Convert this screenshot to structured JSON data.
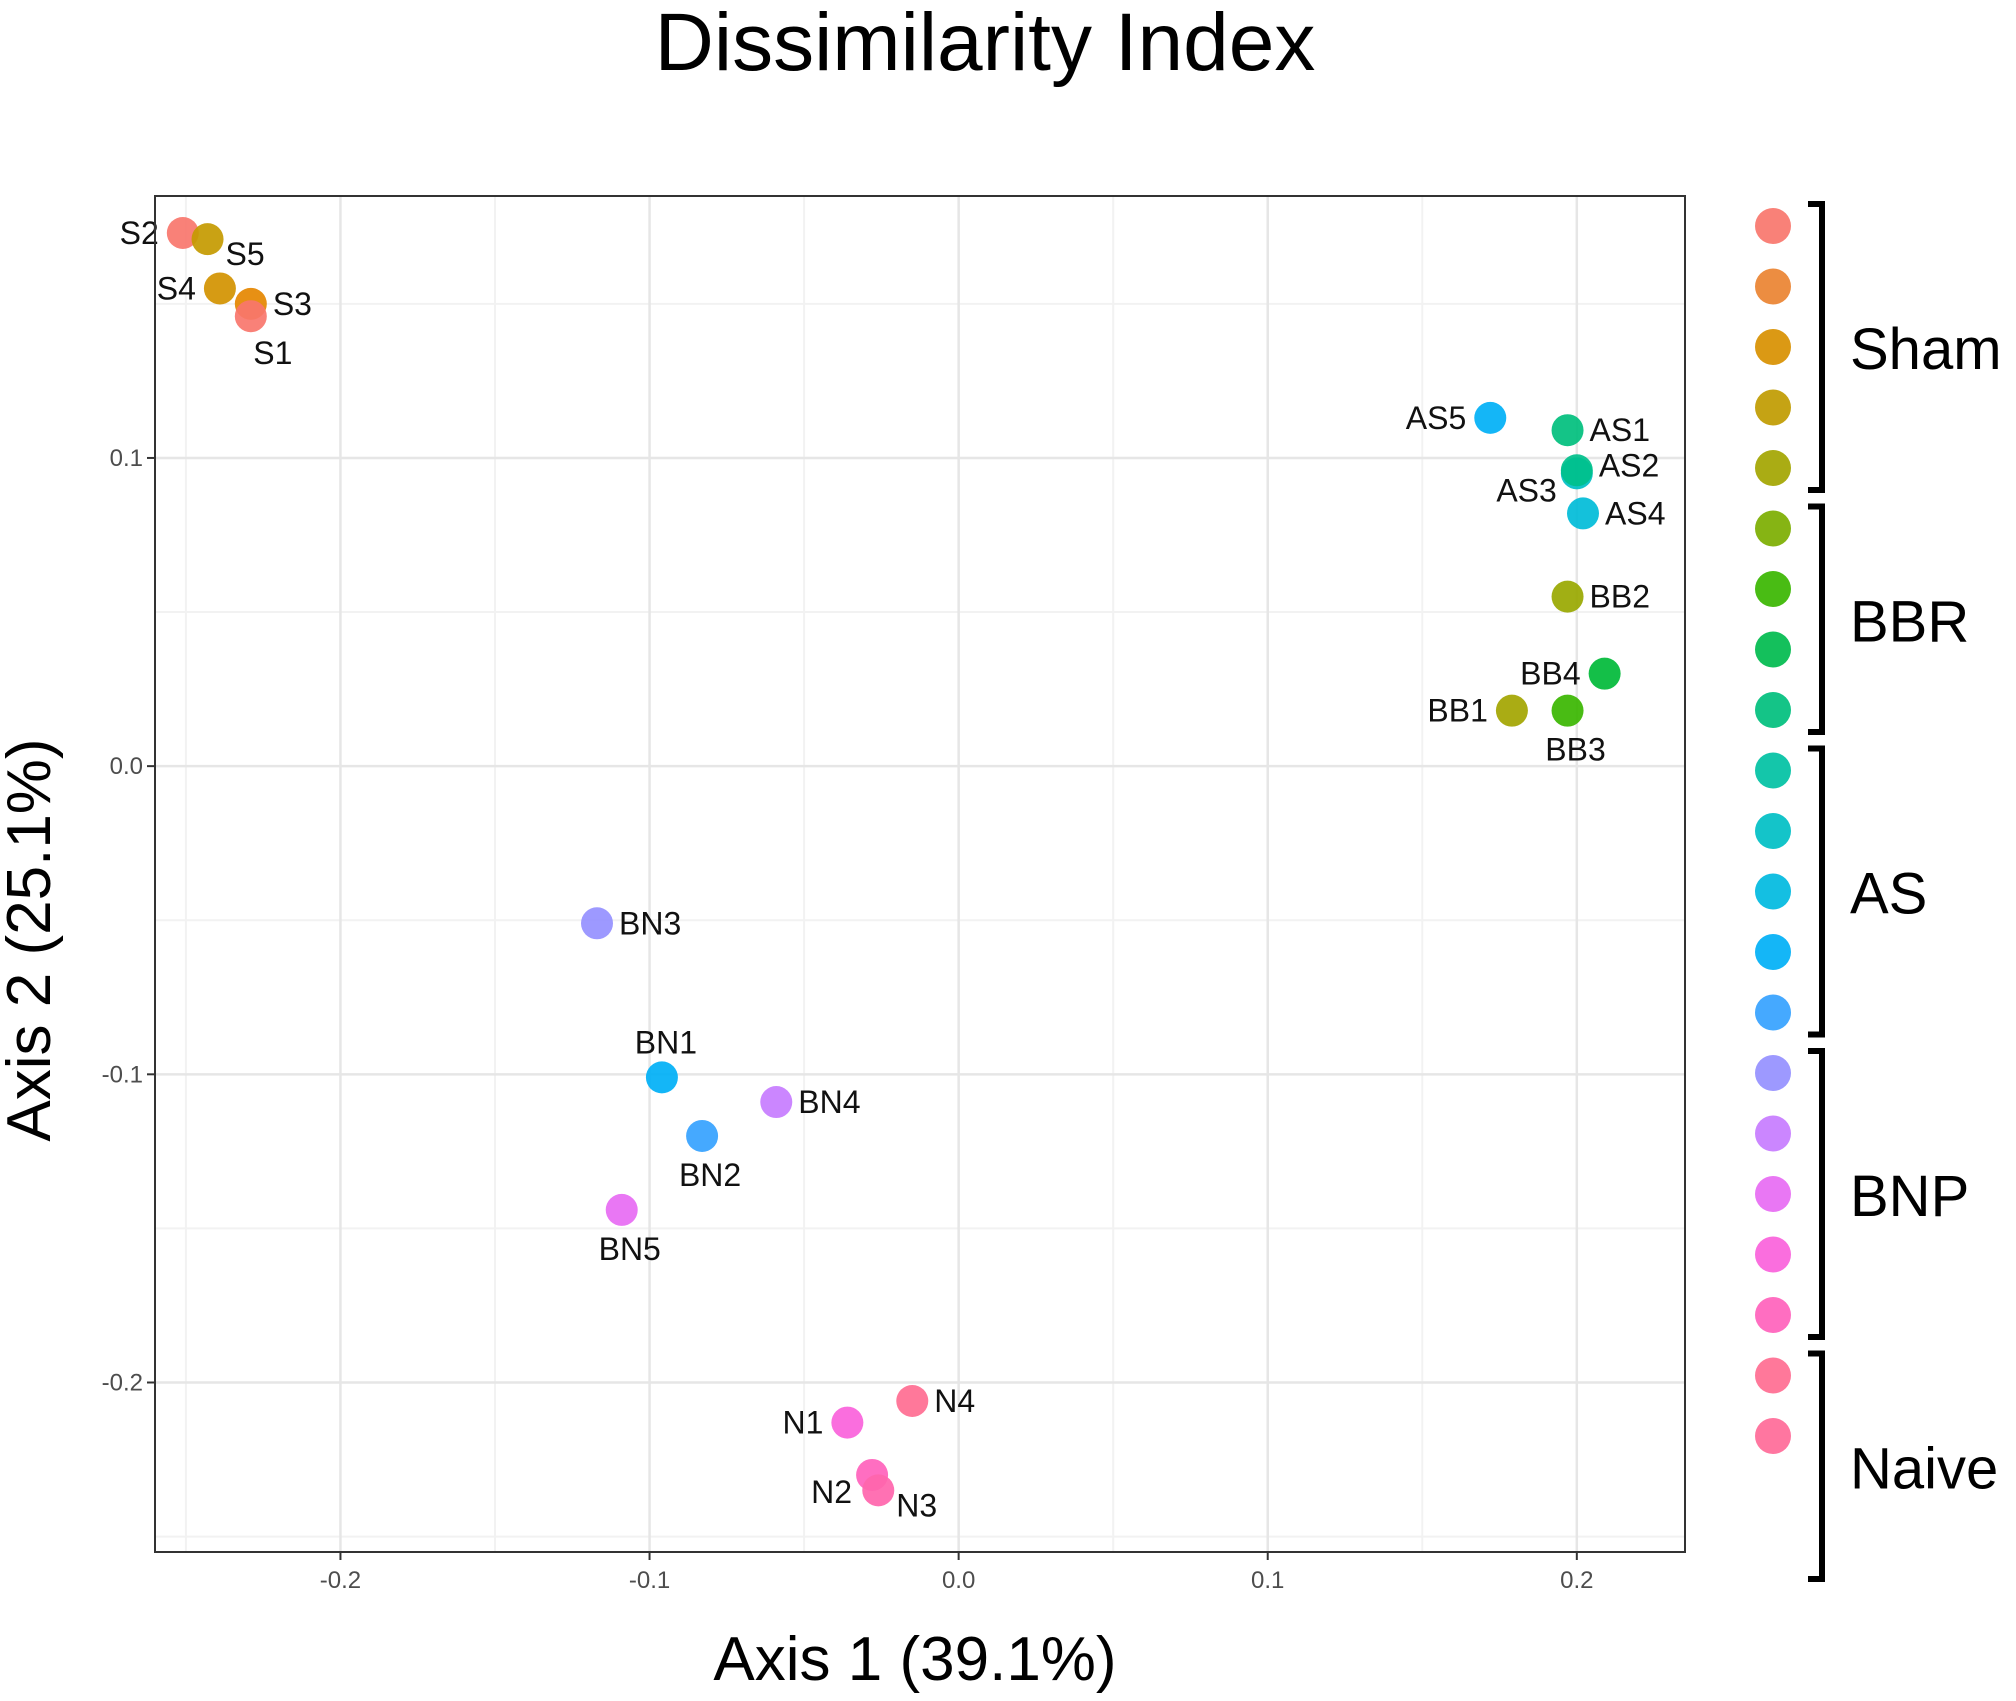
{
  "chart_data": {
    "type": "scatter",
    "title": "Dissimilarity Index",
    "xlabel": "Axis 1 (39.1%)",
    "ylabel": "Axis 2 (25.1%)",
    "xlim": [
      -0.26,
      0.235
    ],
    "ylim": [
      -0.255,
      0.185
    ],
    "grid": true,
    "x_ticks": [
      {
        "value": -0.2,
        "label": "-0.2"
      },
      {
        "value": -0.1,
        "label": "-0.1"
      },
      {
        "value": 0.0,
        "label": "0.0"
      },
      {
        "value": 0.1,
        "label": "0.1"
      },
      {
        "value": 0.2,
        "label": "0.2"
      }
    ],
    "y_ticks": [
      {
        "value": 0.1,
        "label": "0.1"
      },
      {
        "value": 0.0,
        "label": "0.0"
      },
      {
        "value": -0.1,
        "label": "-0.1"
      },
      {
        "value": -0.2,
        "label": "-0.2"
      }
    ],
    "points": [
      {
        "label": "S2",
        "x": -0.251,
        "y": 0.173,
        "color": "#F8766D",
        "label_pos": "left"
      },
      {
        "label": "S5",
        "x": -0.243,
        "y": 0.171,
        "color": "#C49A00",
        "label_pos": "right-below"
      },
      {
        "label": "S4",
        "x": -0.239,
        "y": 0.155,
        "color": "#D39200",
        "label_pos": "left"
      },
      {
        "label": "S3",
        "x": -0.229,
        "y": 0.15,
        "color": "#E58700",
        "label_pos": "right"
      },
      {
        "label": "S1",
        "x": -0.229,
        "y": 0.146,
        "color": "#F8766D",
        "label_pos": "below-right"
      },
      {
        "label": "AS5",
        "x": 0.172,
        "y": 0.113,
        "color": "#00B0F6",
        "label_pos": "left"
      },
      {
        "label": "AS1",
        "x": 0.197,
        "y": 0.109,
        "color": "#00BF7D",
        "label_pos": "right"
      },
      {
        "label": "AS3",
        "x": 0.2,
        "y": 0.095,
        "color": "#00BFC4",
        "label_pos": "left-below"
      },
      {
        "label": "AS2",
        "x": 0.2,
        "y": 0.096,
        "color": "#00C08B",
        "label_pos": "right-above"
      },
      {
        "label": "AS4",
        "x": 0.202,
        "y": 0.082,
        "color": "#00BCD8",
        "label_pos": "right"
      },
      {
        "label": "BB2",
        "x": 0.197,
        "y": 0.055,
        "color": "#99A800",
        "label_pos": "right"
      },
      {
        "label": "BB4",
        "x": 0.209,
        "y": 0.03,
        "color": "#00BA38",
        "label_pos": "left"
      },
      {
        "label": "BB1",
        "x": 0.179,
        "y": 0.018,
        "color": "#A3A500",
        "label_pos": "left"
      },
      {
        "label": "BB3",
        "x": 0.197,
        "y": 0.018,
        "color": "#39B600",
        "label_pos": "below"
      },
      {
        "label": "BN3",
        "x": -0.117,
        "y": -0.051,
        "color": "#9590FF",
        "label_pos": "right"
      },
      {
        "label": "BN1",
        "x": -0.096,
        "y": -0.101,
        "color": "#00B0F6",
        "label_pos": "above"
      },
      {
        "label": "BN4",
        "x": -0.059,
        "y": -0.109,
        "color": "#C77CFF",
        "label_pos": "right"
      },
      {
        "label": "BN2",
        "x": -0.083,
        "y": -0.12,
        "color": "#35A2FF",
        "label_pos": "below"
      },
      {
        "label": "BN5",
        "x": -0.109,
        "y": -0.144,
        "color": "#E76BF3",
        "label_pos": "below"
      },
      {
        "label": "N4",
        "x": -0.015,
        "y": -0.206,
        "color": "#FF6C91",
        "label_pos": "right"
      },
      {
        "label": "N1",
        "x": -0.036,
        "y": -0.213,
        "color": "#FA62DB",
        "label_pos": "left"
      },
      {
        "label": "N2",
        "x": -0.028,
        "y": -0.23,
        "color": "#FF62BC",
        "label_pos": "left-below"
      },
      {
        "label": "N3",
        "x": -0.026,
        "y": -0.235,
        "color": "#FF65AC",
        "label_pos": "right-below"
      }
    ],
    "legend": {
      "placement": "right",
      "colors": [
        "#F8766D",
        "#EA8331",
        "#D89000",
        "#C09B00",
        "#A3A500",
        "#7CAE00",
        "#39B600",
        "#00BB4E",
        "#00BF7D",
        "#00C1A3",
        "#00BFC4",
        "#00BAE0",
        "#00B0F6",
        "#35A2FF",
        "#9590FF",
        "#C77CFF",
        "#E76BF3",
        "#FA62DB",
        "#FF62BC",
        "#FF6C91",
        "#FF6A98"
      ],
      "groups": [
        {
          "name": "Sham",
          "first": 0,
          "last": 4
        },
        {
          "name": "BBR",
          "first": 5,
          "last": 8
        },
        {
          "name": "AS",
          "first": 9,
          "last": 13
        },
        {
          "name": "BNP",
          "first": 14,
          "last": 18
        },
        {
          "name": "Naive",
          "first": 19,
          "last": 22
        }
      ]
    }
  }
}
